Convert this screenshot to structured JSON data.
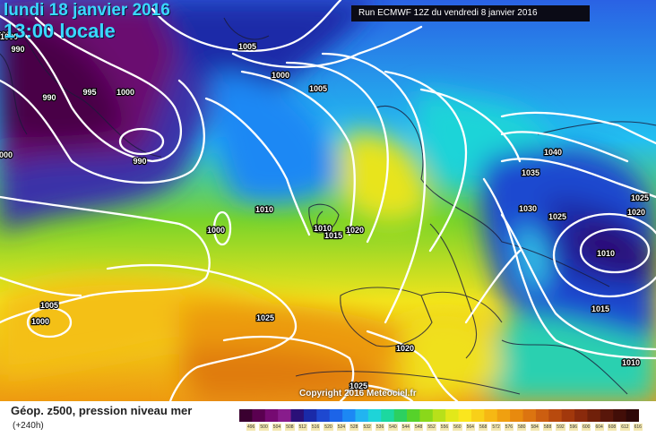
{
  "header": {
    "date_title": "lundi 18 janvier 2016",
    "local_time": "13:00 locale",
    "run_info": "Run ECMWF 12Z du vendredi 8 janvier 2016"
  },
  "copyright": "Copyright 2016 Meteociel.fr",
  "legend": {
    "title": "Géop. z500, pression niveau mer",
    "subtitle": "(+240h)",
    "ticks": [
      "496",
      "500",
      "504",
      "508",
      "512",
      "516",
      "520",
      "524",
      "528",
      "532",
      "536",
      "540",
      "544",
      "548",
      "552",
      "556",
      "560",
      "564",
      "568",
      "572",
      "576",
      "580",
      "584",
      "588",
      "592",
      "596",
      "600",
      "604",
      "608",
      "612",
      "616"
    ],
    "colors": [
      "#3a0030",
      "#5a0050",
      "#760a72",
      "#881c8c",
      "#2a1078",
      "#1a2aa8",
      "#1e48d0",
      "#1c64e8",
      "#1c88f4",
      "#22b4f0",
      "#1ed4d8",
      "#1cd8a0",
      "#2cd060",
      "#56d22a",
      "#8ad81a",
      "#b8e01a",
      "#e2e81a",
      "#fae61e",
      "#f8d018",
      "#f6b814",
      "#f0a010",
      "#e88a0e",
      "#dc7410",
      "#cc5e10",
      "#b84a0e",
      "#a2380c",
      "#8a2a0c",
      "#70200a",
      "#58160a",
      "#420e08",
      "#2e0808"
    ]
  },
  "map": {
    "isobar_labels": [
      {
        "text": "990"
      },
      {
        "text": "990"
      },
      {
        "text": "995"
      },
      {
        "text": "1000"
      },
      {
        "text": "990"
      },
      {
        "text": "1000"
      },
      {
        "text": "1005"
      },
      {
        "text": "1000"
      },
      {
        "text": "1005"
      },
      {
        "text": "1010"
      },
      {
        "text": "1000"
      },
      {
        "text": "1010"
      },
      {
        "text": "1015"
      },
      {
        "text": "1020"
      },
      {
        "text": "1040"
      },
      {
        "text": "1035"
      },
      {
        "text": "1030"
      },
      {
        "text": "1025"
      },
      {
        "text": "1025"
      },
      {
        "text": "1020"
      },
      {
        "text": "1010"
      },
      {
        "text": "1005"
      },
      {
        "text": "1000"
      },
      {
        "text": "1025"
      },
      {
        "text": "1015"
      },
      {
        "text": "1020"
      },
      {
        "text": "1010"
      },
      {
        "text": "1025"
      },
      {
        "text": "990"
      },
      {
        "text": "1000"
      }
    ]
  }
}
